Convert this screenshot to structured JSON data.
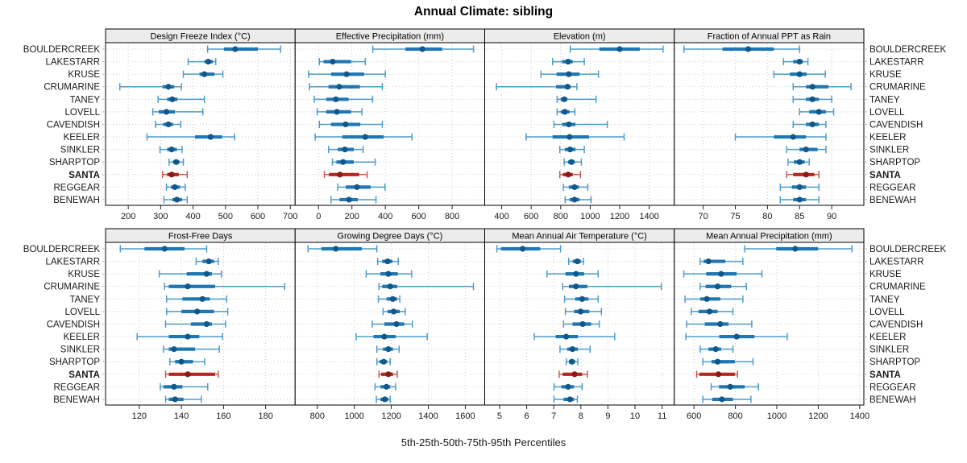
{
  "title": "Annual Climate: sibling",
  "caption": "5th-25th-50th-75th-95th Percentiles",
  "colors": {
    "blue_whisker": "#4E9BCB",
    "blue_box": "#2077B4",
    "blue_dot": "#10578A",
    "red_whisker": "#C75B4E",
    "red_box": "#B2271F",
    "red_dot": "#8C1A13",
    "strip_bg": "#ECECEC",
    "grid": "#C9C9C9",
    "border": "#000000",
    "tick": "#222222",
    "text": "#1A1A1A",
    "outer_tick": "#B5B5B5"
  },
  "chart_data": {
    "type": "dotplot-interval-trellis",
    "percentiles": [
      "5th",
      "25th",
      "50th",
      "75th",
      "95th"
    ],
    "stations": [
      "BOULDERCREEK",
      "LAKESTARR",
      "KRUSE",
      "CRUMARINE",
      "TANEY",
      "LOVELL",
      "CAVENDISH",
      "KEELER",
      "SINKLER",
      "SHARPTOP",
      "SANTA",
      "REGGEAR",
      "BENEWAH"
    ],
    "highlight": "SANTA",
    "grid": "dotted",
    "panels": [
      {
        "title": "Design Freeze Index (°C)",
        "row": 0,
        "col": 0,
        "xlim": [
          130,
          715
        ],
        "ticks": [
          200,
          300,
          400,
          500,
          600,
          700
        ],
        "values": [
          [
            445,
            495,
            530,
            600,
            670
          ],
          [
            385,
            435,
            447,
            461,
            470
          ],
          [
            370,
            420,
            435,
            466,
            492
          ],
          [
            174,
            306,
            324,
            342,
            364
          ],
          [
            292,
            320,
            336,
            352,
            435
          ],
          [
            276,
            294,
            318,
            344,
            430
          ],
          [
            284,
            308,
            324,
            338,
            362
          ],
          [
            258,
            406,
            454,
            490,
            528
          ],
          [
            298,
            320,
            334,
            350,
            366
          ],
          [
            326,
            338,
            348,
            358,
            370
          ],
          [
            306,
            320,
            334,
            356,
            382
          ],
          [
            318,
            332,
            344,
            360,
            376
          ],
          [
            310,
            336,
            350,
            366,
            382
          ]
        ]
      },
      {
        "title": "Effective Precipitation (mm)",
        "row": 0,
        "col": 1,
        "xlim": [
          -140,
          995
        ],
        "ticks": [
          0,
          200,
          400,
          600,
          800
        ],
        "values": [
          [
            325,
            520,
            622,
            740,
            928
          ],
          [
            5,
            30,
            85,
            195,
            280
          ],
          [
            -60,
            75,
            168,
            273,
            400
          ],
          [
            -55,
            60,
            124,
            248,
            382
          ],
          [
            -25,
            46,
            104,
            180,
            324
          ],
          [
            -8,
            46,
            110,
            195,
            260
          ],
          [
            5,
            75,
            162,
            250,
            382
          ],
          [
            -20,
            142,
            280,
            390,
            560
          ],
          [
            60,
            115,
            158,
            211,
            267
          ],
          [
            83,
            107,
            147,
            211,
            339
          ],
          [
            35,
            62,
            128,
            243,
            291
          ],
          [
            115,
            163,
            230,
            312,
            398
          ],
          [
            75,
            126,
            182,
            235,
            344
          ]
        ]
      },
      {
        "title": "Elevation (m)",
        "row": 0,
        "col": 2,
        "xlim": [
          285,
          1570
        ],
        "ticks": [
          400,
          600,
          800,
          1000,
          1200,
          1400
        ],
        "values": [
          [
            865,
            1062,
            1200,
            1336,
            1494
          ],
          [
            745,
            809,
            850,
            882,
            960
          ],
          [
            666,
            772,
            855,
            928,
            1056
          ],
          [
            365,
            769,
            846,
            868,
            910
          ],
          [
            776,
            800,
            824,
            846,
            1040
          ],
          [
            776,
            800,
            828,
            860,
            896
          ],
          [
            754,
            810,
            855,
            900,
            1116
          ],
          [
            566,
            745,
            860,
            992,
            1230
          ],
          [
            794,
            828,
            864,
            900,
            960
          ],
          [
            824,
            850,
            873,
            896,
            940
          ],
          [
            794,
            815,
            851,
            882,
            934
          ],
          [
            818,
            855,
            894,
            924,
            984
          ],
          [
            830,
            860,
            894,
            928,
            1006
          ]
        ]
      },
      {
        "title": "Fraction of Annual PPT as Rain",
        "row": 0,
        "col": 3,
        "xlim": [
          65.5,
          95
        ],
        "ticks": [
          70,
          75,
          80,
          85,
          90
        ],
        "values": [
          [
            67,
            73,
            77,
            81,
            85
          ],
          [
            82.5,
            84,
            85,
            85.5,
            86.3
          ],
          [
            81,
            83.5,
            85,
            86.1,
            89
          ],
          [
            84,
            86,
            87,
            89.5,
            93
          ],
          [
            84,
            86,
            87,
            88,
            90
          ],
          [
            85,
            86.5,
            88,
            89.1,
            90.3
          ],
          [
            84,
            86,
            87,
            88,
            89.1
          ],
          [
            75,
            81,
            84,
            86,
            89.1
          ],
          [
            83,
            85,
            86,
            87.8,
            89.1
          ],
          [
            83.2,
            84.1,
            85,
            85.8,
            86.5
          ],
          [
            83,
            84,
            86,
            87.3,
            88
          ],
          [
            82,
            83.8,
            85,
            86,
            88
          ],
          [
            82,
            84,
            85,
            86,
            88
          ]
        ]
      },
      {
        "title": "Frost-Free Days",
        "row": 1,
        "col": 0,
        "xlim": [
          104,
          194
        ],
        "ticks": [
          120,
          140,
          160,
          180
        ],
        "values": [
          [
            111,
            122.5,
            132,
            141.5,
            152
          ],
          [
            147,
            150,
            153,
            155.5,
            157.5
          ],
          [
            129.5,
            142.5,
            152,
            154.5,
            159
          ],
          [
            132,
            134,
            143,
            156,
            189
          ],
          [
            133,
            140.5,
            150,
            153.5,
            161.5
          ],
          [
            133,
            140,
            147.5,
            155.5,
            162
          ],
          [
            132.5,
            144.5,
            152,
            154.5,
            161
          ],
          [
            119,
            134,
            143,
            148.5,
            159.5
          ],
          [
            131.5,
            134,
            136.5,
            146.5,
            158
          ],
          [
            134.5,
            137,
            140,
            145.5,
            151
          ],
          [
            132.5,
            134,
            143,
            156,
            157.5
          ],
          [
            130,
            131.5,
            136.5,
            140.5,
            152.5
          ],
          [
            132.5,
            134,
            137,
            141,
            149.5
          ]
        ]
      },
      {
        "title": "Growing Degree Days (°C)",
        "row": 1,
        "col": 1,
        "xlim": [
          680,
          1705
        ],
        "ticks": [
          800,
          1000,
          1200,
          1400,
          1600
        ],
        "values": [
          [
            750,
            822,
            900,
            1040,
            1122
          ],
          [
            1126,
            1151,
            1180,
            1206,
            1238
          ],
          [
            1064,
            1141,
            1184,
            1235,
            1310
          ],
          [
            1133,
            1151,
            1194,
            1232,
            1644
          ],
          [
            1130,
            1174,
            1208,
            1232,
            1246
          ],
          [
            1155,
            1180,
            1213,
            1246,
            1275
          ],
          [
            1097,
            1162,
            1228,
            1270,
            1314
          ],
          [
            1010,
            1104,
            1162,
            1224,
            1394
          ],
          [
            1122,
            1155,
            1184,
            1209,
            1242
          ],
          [
            1122,
            1136,
            1159,
            1177,
            1194
          ],
          [
            1133,
            1145,
            1184,
            1209,
            1232
          ],
          [
            1112,
            1141,
            1174,
            1194,
            1223
          ],
          [
            1119,
            1141,
            1165,
            1184,
            1194
          ]
        ]
      },
      {
        "title": "Mean Annual Air Temperature (°C)",
        "row": 1,
        "col": 2,
        "xlim": [
          4.45,
          11.45
        ],
        "ticks": [
          5,
          6,
          7,
          8,
          9,
          10,
          11
        ],
        "values": [
          [
            4.9,
            5.05,
            5.85,
            6.5,
            7.25
          ],
          [
            7.55,
            7.7,
            7.87,
            8.0,
            8.1
          ],
          [
            6.75,
            7.43,
            7.82,
            8.12,
            8.64
          ],
          [
            7.33,
            7.56,
            7.82,
            8.24,
            10.97
          ],
          [
            7.4,
            7.79,
            8.05,
            8.28,
            8.64
          ],
          [
            7.43,
            7.75,
            7.99,
            8.31,
            8.76
          ],
          [
            7.36,
            7.69,
            8.07,
            8.38,
            8.68
          ],
          [
            6.28,
            7.07,
            7.46,
            7.89,
            9.25
          ],
          [
            7.23,
            7.5,
            7.69,
            7.89,
            8.34
          ],
          [
            7.46,
            7.56,
            7.67,
            7.79,
            7.89
          ],
          [
            7.2,
            7.33,
            7.77,
            8.05,
            8.24
          ],
          [
            7.01,
            7.28,
            7.53,
            7.75,
            8.05
          ],
          [
            7.01,
            7.36,
            7.6,
            7.75,
            7.87
          ]
        ]
      },
      {
        "title": "Mean Annual Precipitation (mm)",
        "row": 1,
        "col": 3,
        "xlim": [
          505,
          1420
        ],
        "ticks": [
          600,
          800,
          1000,
          1200,
          1400
        ],
        "values": [
          [
            845,
            997,
            1089,
            1199,
            1363
          ],
          [
            630,
            646,
            670,
            751,
            836
          ],
          [
            551,
            659,
            731,
            806,
            928
          ],
          [
            630,
            656,
            714,
            780,
            853
          ],
          [
            557,
            630,
            662,
            727,
            836
          ],
          [
            587,
            622,
            675,
            714,
            788
          ],
          [
            565,
            652,
            727,
            767,
            879
          ],
          [
            561,
            722,
            806,
            892,
            1050
          ],
          [
            630,
            670,
            705,
            731,
            788
          ],
          [
            643,
            685,
            714,
            797,
            885
          ],
          [
            613,
            626,
            718,
            797,
            810
          ],
          [
            683,
            721,
            775,
            845,
            911
          ],
          [
            643,
            688,
            735,
            788,
            875
          ]
        ]
      }
    ]
  }
}
